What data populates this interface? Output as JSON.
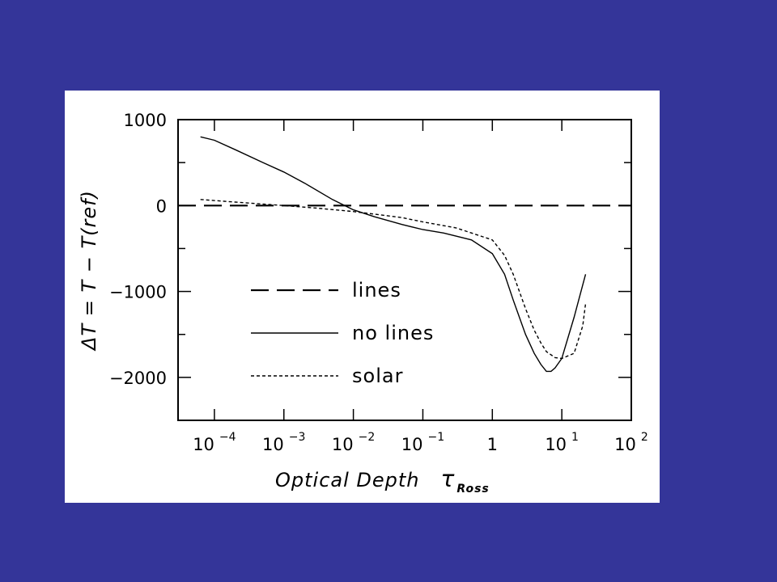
{
  "slide": {
    "background": "#343599"
  },
  "chart_data": {
    "type": "line",
    "xscale": "log",
    "xlim": [
      3e-05,
      100
    ],
    "ylim": [
      -2500,
      1000
    ],
    "grid": false,
    "x_ticks": [
      {
        "value": 0.0001,
        "base": "10",
        "exp": "−4"
      },
      {
        "value": 0.001,
        "base": "10",
        "exp": "−3"
      },
      {
        "value": 0.01,
        "base": "10",
        "exp": "−2"
      },
      {
        "value": 0.1,
        "base": "10",
        "exp": "−1"
      },
      {
        "value": 1,
        "base": "1",
        "exp": ""
      },
      {
        "value": 10,
        "base": "10",
        "exp": "1"
      },
      {
        "value": 100,
        "base": "10",
        "exp": "2"
      }
    ],
    "y_ticks": [
      {
        "value": 1000,
        "label": "1000"
      },
      {
        "value": 0,
        "label": "0"
      },
      {
        "value": -1000,
        "label": "−1000"
      },
      {
        "value": -2000,
        "label": "−2000"
      }
    ],
    "xlabel": {
      "main": "Optical Depth",
      "tau": "τ",
      "sub": "Ross"
    },
    "ylabel": "ΔT = T − T(ref)",
    "legend": {
      "position": "bottom-left"
    },
    "series": [
      {
        "name": "lines",
        "style": "dashed",
        "x": [
          3e-05,
          100
        ],
        "y": [
          0,
          0
        ]
      },
      {
        "name": "no lines",
        "style": "solid",
        "x": [
          6.3e-05,
          0.0001,
          0.0002,
          0.0005,
          0.001,
          0.002,
          0.005,
          0.01,
          0.02,
          0.05,
          0.1,
          0.2,
          0.5,
          1,
          1.5,
          2,
          3,
          4,
          5,
          6,
          7,
          8,
          10,
          15,
          22
        ],
        "y": [
          800,
          760,
          650,
          500,
          390,
          260,
          70,
          -50,
          -130,
          -220,
          -280,
          -320,
          -400,
          -560,
          -800,
          -1100,
          -1500,
          -1720,
          -1850,
          -1930,
          -1930,
          -1890,
          -1780,
          -1300,
          -800
        ]
      },
      {
        "name": "solar",
        "style": "dotted",
        "x": [
          6.3e-05,
          0.0002,
          0.001,
          0.003,
          0.01,
          0.05,
          0.1,
          0.3,
          1,
          1.5,
          2,
          3,
          4,
          5,
          6,
          8,
          10,
          15,
          20,
          22
        ],
        "y": [
          70,
          40,
          0,
          -30,
          -70,
          -140,
          -190,
          -260,
          -400,
          -580,
          -800,
          -1200,
          -1450,
          -1600,
          -1700,
          -1770,
          -1780,
          -1720,
          -1400,
          -1140
        ]
      }
    ]
  }
}
